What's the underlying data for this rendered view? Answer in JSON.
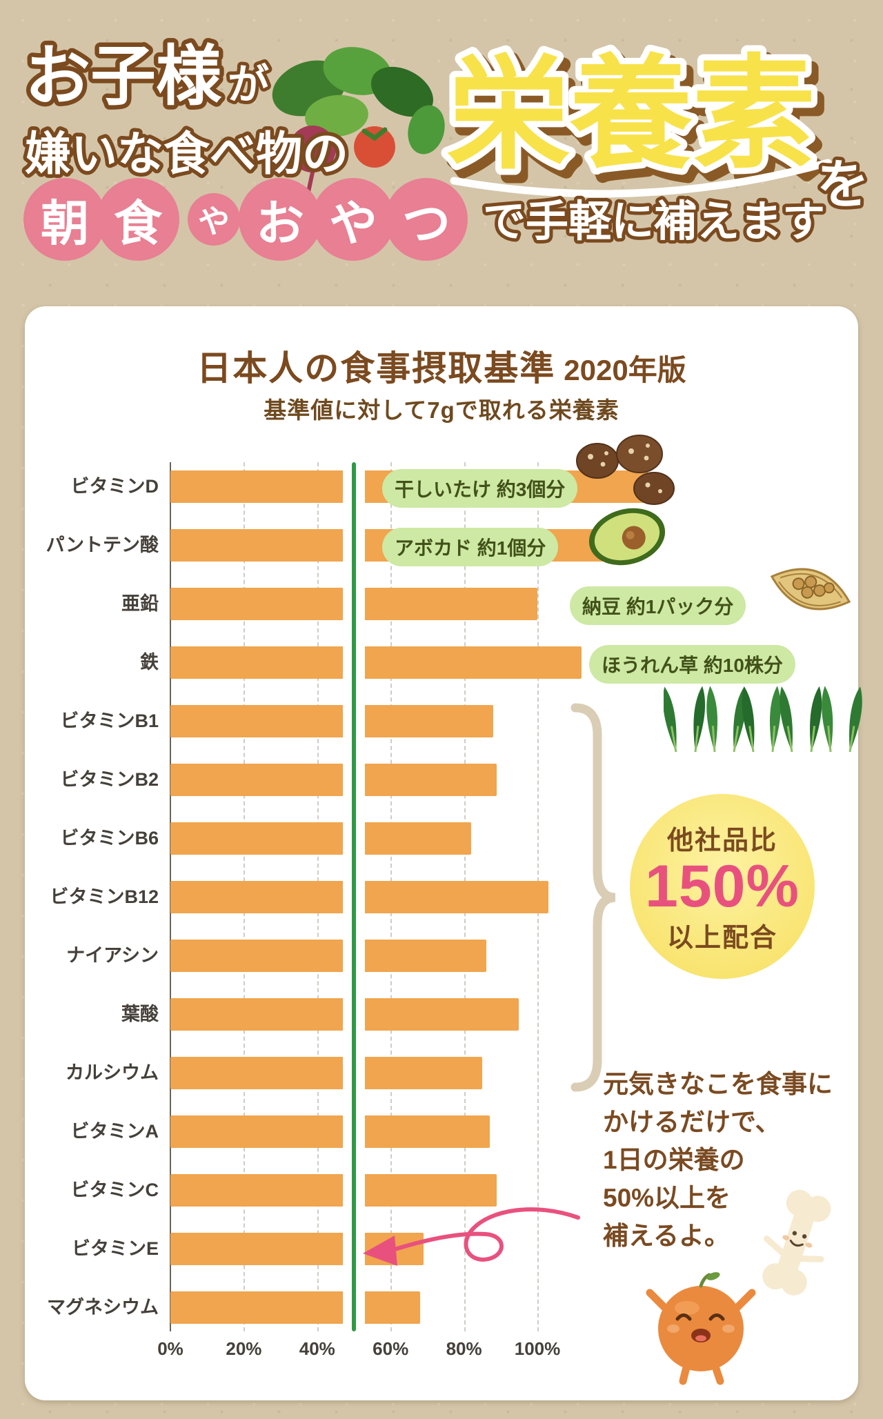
{
  "header": {
    "line1": "お子様",
    "line1_suffix": "が",
    "line2": "嫌いな食べ物の",
    "highlight_word": "栄養素",
    "highlight_suffix": "を",
    "pill_breakfast": [
      "朝",
      "食"
    ],
    "pill_connector": "や",
    "pill_snack": [
      "お",
      "や",
      "つ"
    ],
    "tagline": "で手軽に補えます",
    "accent_pink": "#e87f92",
    "accent_yellow": "#f8e24a",
    "outline_brown": "#7b4a1e"
  },
  "panel": {
    "title": "日本人の食事摂取基準",
    "edition": "2020年版",
    "subtitle": "基準値に対して7gで取れる栄養素"
  },
  "chart_data": {
    "type": "bar",
    "orientation": "horizontal",
    "title": "日本人の食事摂取基準 2020年版",
    "subtitle": "基準値に対して7gで取れる栄養素",
    "unit": "%",
    "categories": [
      "ビタミンD",
      "パントテン酸",
      "亜鉛",
      "鉄",
      "ビタミンB1",
      "ビタミンB2",
      "ビタミンB6",
      "ビタミンB12",
      "ナイアシン",
      "葉酸",
      "カルシウム",
      "ビタミンA",
      "ビタミンC",
      "ビタミンE",
      "マグネシウム"
    ],
    "values": [
      130,
      125,
      100,
      112,
      88,
      89,
      82,
      103,
      86,
      95,
      85,
      87,
      89,
      69,
      68
    ],
    "x_ticks": [
      0,
      20,
      40,
      60,
      80,
      100
    ],
    "x_tick_labels": [
      "0%",
      "20%",
      "40%",
      "60%",
      "80%",
      "100%"
    ],
    "xlim": [
      0,
      190
    ],
    "grid": "dashed-vertical",
    "legend": "none",
    "reference_line_pct": 50,
    "bar_color": "#f0a54e",
    "reference_line_color": "#2f9a44"
  },
  "badges": [
    {
      "label": "干しいたけ 約3個分",
      "icon": "shiitake-icon",
      "row": 0
    },
    {
      "label": "アボカド 約1個分",
      "icon": "avocado-icon",
      "row": 1
    },
    {
      "label": "納豆 約1パック分",
      "icon": "natto-icon",
      "row": 2
    },
    {
      "label": "ほうれん草 約10株分",
      "icon": "spinach-icon",
      "row": 3
    }
  ],
  "highlight_circle": {
    "line1": "他社品比",
    "percent": "150%",
    "line2": "以上配合",
    "percent_color": "#e8517e"
  },
  "note": {
    "lines": [
      "元気きなこを食事に",
      "かけるだけで、",
      "1日の栄養の",
      "50%以上を",
      "補えるよ。"
    ]
  }
}
